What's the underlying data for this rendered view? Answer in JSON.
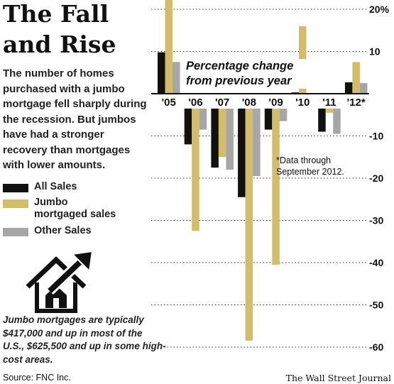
{
  "title": {
    "line1": "The Fall",
    "line2": "and Rise"
  },
  "description": "The number of homes purchased with a jumbo mortgage fell sharply during the recession. But jumbos have had a stronger recovery than mortgages with lower amounts.",
  "footnote": "Jumbo mortgages are typically $417,000 and up in most of the U.S., $625,500 and up in some high-cost areas.",
  "source": "Source: FNC Inc.",
  "credit": "The Wall Street Journal",
  "house_icon": "house-with-rising-arrow-icon",
  "chart_data": {
    "type": "bar",
    "subtitle": "Percentage change\nfrom previous year",
    "note": "*Data through\nSeptember 2012.",
    "categories": [
      "'05",
      "'06",
      "'07",
      "'08",
      "'09",
      "'10",
      "'11",
      "'12*"
    ],
    "series": [
      {
        "name": "All Sales",
        "color": "#111111",
        "values": [
          9.8,
          -12,
          -17.5,
          -24.5,
          -8.5,
          0.3,
          -9,
          2.7
        ]
      },
      {
        "name": "Jumbo\nmortgaged sales",
        "color": "#d4bd6a",
        "values": [
          24,
          -32.5,
          -15,
          -58.5,
          -40.5,
          16,
          -4.5,
          7.5
        ]
      },
      {
        "name": "Other Sales",
        "color": "#a6a6a6",
        "values": [
          7.5,
          -8.5,
          -18,
          -19.5,
          -6.5,
          -0.3,
          -9.5,
          2.5
        ]
      }
    ],
    "yticks": [
      20,
      10,
      -10,
      -20,
      -30,
      -40,
      -50,
      -60
    ],
    "ytick_labels": [
      "20%",
      "10",
      "-10",
      "-20",
      "-30",
      "-40",
      "-50",
      "-60"
    ],
    "ylim": [
      -60,
      20
    ],
    "grid": true,
    "legend": "left"
  }
}
